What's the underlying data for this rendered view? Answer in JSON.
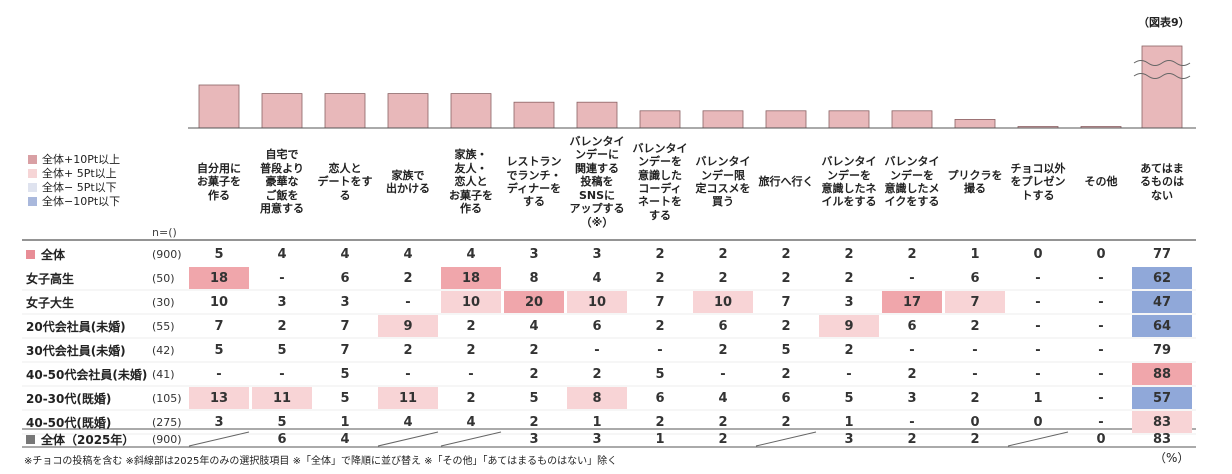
{
  "figure_label": "（図表9）",
  "legend": [
    {
      "label": "全体+10Pt以上",
      "color": "#d9a0a4"
    },
    {
      "label": "全体+ 5Pt以上",
      "color": "#f6d5d6"
    },
    {
      "label": "全体− 5Pt以下",
      "color": "#dfe3ef"
    },
    {
      "label": "全体−10Pt以下",
      "color": "#a9b8dc"
    }
  ],
  "n_label": "n=()",
  "footnote": "※チョコの投稿を含む ※斜線部は2025年のみの選択肢項目 ※「全体」で降順に並び替え ※「その他」「あてはまるものはない」除く",
  "unit": "（%）",
  "chart_data": {
    "type": "bar",
    "categories": [
      "自分用に\nお菓子を\n作る",
      "自宅で\n普段より\n豪華な\nご飯を\n用意する",
      "恋人と\nデートをす\nる",
      "家族で\n出かける",
      "家族・\n友人・\n恋人と\nお菓子を\n作る",
      "レストラン\nでランチ・\nディナーを\nする",
      "バレンタイ\nンデーに\n関連する\n投稿を\nSNSに\nアップする\n（※）",
      "バレンタイ\nンデーを\n意識した\nコーディ\nネートを\nする",
      "バレンタイ\nンデー限\n定コスメを\n買う",
      "旅行へ行く",
      "バレンタイ\nンデーを\n意識したネ\nイルをする",
      "バレンタイ\nンデーを\n意識したメ\nイクをする",
      "プリクラを\n撮る",
      "チョコ以外\nをプレゼン\nトする",
      "その他",
      "あてはま\nるものは\nない"
    ],
    "values": [
      5,
      4,
      4,
      4,
      4,
      3,
      3,
      2,
      2,
      2,
      2,
      2,
      1,
      0,
      0,
      77
    ],
    "bar_color": "#e8b8ba",
    "axis_break_on": "あてはま\nるものは\nない",
    "rows": [
      {
        "label": "全体",
        "n": "(900)",
        "cells": [
          "5",
          "4",
          "4",
          "4",
          "4",
          "3",
          "3",
          "2",
          "2",
          "2",
          "2",
          "2",
          "1",
          "0",
          "0",
          "77"
        ]
      },
      {
        "label": "女子高生",
        "n": "(50)",
        "cells": [
          "18",
          "-",
          "6",
          "2",
          "18",
          "8",
          "4",
          "2",
          "2",
          "2",
          "2",
          "-",
          "6",
          "-",
          "-",
          "62"
        ]
      },
      {
        "label": "女子大生",
        "n": "(30)",
        "cells": [
          "10",
          "3",
          "3",
          "-",
          "10",
          "20",
          "10",
          "7",
          "10",
          "7",
          "3",
          "17",
          "7",
          "-",
          "-",
          "47"
        ]
      },
      {
        "label": "20代会社員(未婚)",
        "n": "(55)",
        "cells": [
          "7",
          "2",
          "7",
          "9",
          "2",
          "4",
          "6",
          "2",
          "6",
          "2",
          "9",
          "6",
          "2",
          "-",
          "-",
          "64"
        ]
      },
      {
        "label": "30代会社員(未婚)",
        "n": "(42)",
        "cells": [
          "5",
          "5",
          "7",
          "2",
          "2",
          "2",
          "-",
          "-",
          "2",
          "5",
          "2",
          "-",
          "-",
          "-",
          "-",
          "79"
        ]
      },
      {
        "label": "40-50代会社員(未婚)",
        "n": "(41)",
        "cells": [
          "-",
          "-",
          "5",
          "-",
          "-",
          "2",
          "2",
          "5",
          "-",
          "2",
          "-",
          "2",
          "-",
          "-",
          "-",
          "88"
        ]
      },
      {
        "label": "20-30代(既婚)",
        "n": "(105)",
        "cells": [
          "13",
          "11",
          "5",
          "11",
          "2",
          "5",
          "8",
          "6",
          "4",
          "6",
          "5",
          "3",
          "2",
          "1",
          "-",
          "57"
        ]
      },
      {
        "label": "40-50代(既婚)",
        "n": "(275)",
        "cells": [
          "3",
          "5",
          "1",
          "4",
          "4",
          "2",
          "1",
          "2",
          "2",
          "2",
          "1",
          "-",
          "0",
          "0",
          "-",
          "83"
        ]
      },
      {
        "label": "全体（2025年）",
        "n": "(900)",
        "cells": [
          "/",
          "6",
          "4",
          "/",
          "/",
          "3",
          "3",
          "1",
          "2",
          "/",
          "3",
          "2",
          "2",
          "/",
          "0",
          "83"
        ]
      }
    ],
    "highlights": {
      "1": [
        "+10",
        "",
        "",
        "",
        "+10",
        "",
        "",
        "",
        "",
        "",
        "",
        "",
        "",
        "",
        "",
        "-10"
      ],
      "2": [
        "",
        "",
        "",
        "",
        "+5",
        "+10",
        "+5",
        "",
        "+5",
        "",
        "",
        "+10",
        "+5",
        "",
        "",
        "-10"
      ],
      "3": [
        "",
        "",
        "",
        "+5",
        "",
        "",
        "",
        "",
        "",
        "",
        "+5",
        "",
        "",
        "",
        "",
        "-10"
      ],
      "4": [
        "",
        "",
        "",
        "",
        "",
        "",
        "",
        "",
        "",
        "",
        "",
        "",
        "",
        "",
        "",
        ""
      ],
      "5": [
        "",
        "",
        "",
        "",
        "",
        "",
        "",
        "",
        "",
        "",
        "",
        "",
        "",
        "",
        "",
        "+10"
      ],
      "6": [
        "+5",
        "+5",
        "",
        "+5",
        "",
        "",
        "+5",
        "",
        "",
        "",
        "",
        "",
        "",
        "",
        "",
        "-10"
      ],
      "7": [
        "",
        "",
        "",
        "",
        "",
        "",
        "",
        "",
        "",
        "",
        "",
        "",
        "",
        "",
        "",
        "+5"
      ]
    }
  }
}
